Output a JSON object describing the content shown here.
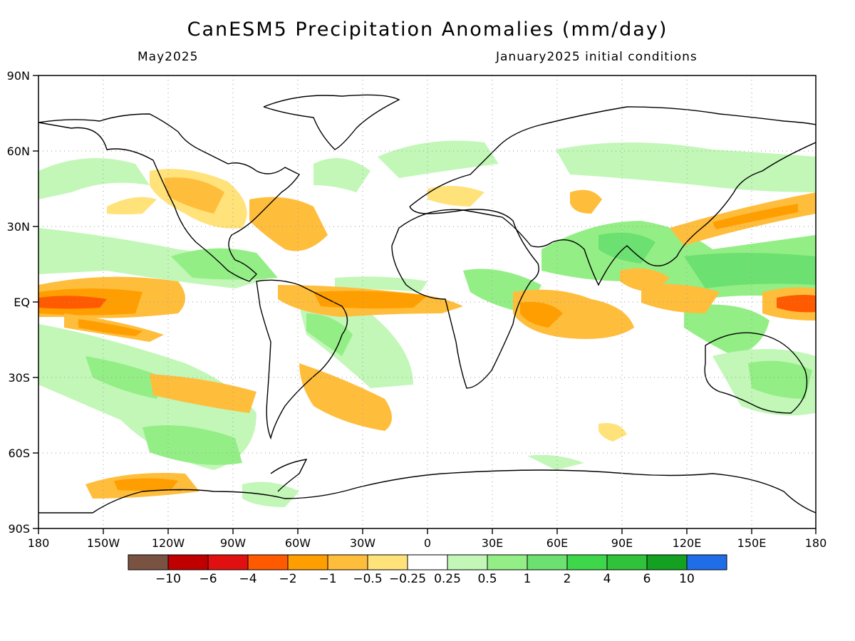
{
  "title": "CanESM5 Precipitation Anomalies (mm/day)",
  "subtitle_left": "May2025",
  "subtitle_right": "January2025 initial conditions",
  "lat_labels": [
    "90N",
    "60N",
    "30N",
    "EQ",
    "30S",
    "60S",
    "90S"
  ],
  "lon_labels": [
    "180",
    "150W",
    "120W",
    "90W",
    "60W",
    "30W",
    "0",
    "30E",
    "60E",
    "90E",
    "120E",
    "150E",
    "180"
  ],
  "legend": {
    "colors": [
      "#7a5242",
      "#c00000",
      "#e01010",
      "#ff5a00",
      "#ff9e00",
      "#ffbd3c",
      "#ffe27a",
      "#ffffff",
      "#c2f7b8",
      "#94ee86",
      "#6ce070",
      "#3ed64b",
      "#2fc23a",
      "#14a020",
      "#1f6ee8"
    ],
    "labels": [
      "-10",
      "-6",
      "-4",
      "-2",
      "-1",
      "-0.5",
      "-0.25",
      "0.25",
      "0.5",
      "1",
      "2",
      "4",
      "6",
      "10"
    ]
  },
  "colors": {
    "dry_light": "#ffe27a",
    "dry_mid": "#ffbd3c",
    "dry_strong": "#ff9e00",
    "dry_core": "#ff5a00",
    "wet_light": "#c2f7b8",
    "wet_mid": "#94ee86",
    "wet_strong": "#6ce070",
    "wet_core": "#3ed64b"
  }
}
